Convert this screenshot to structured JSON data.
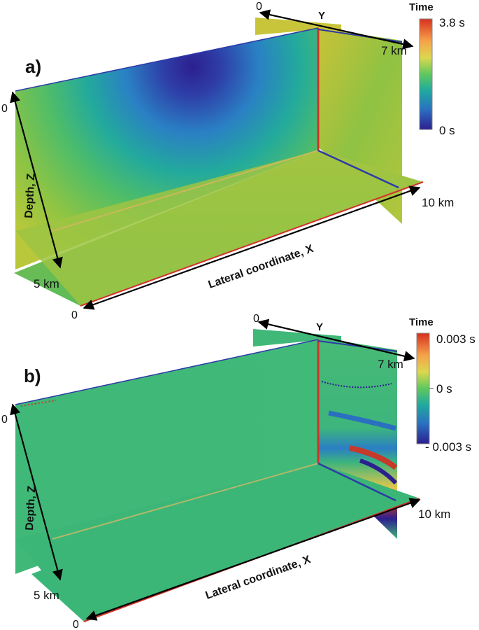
{
  "panels": [
    {
      "label": "a)",
      "colorbar": {
        "title": "Time",
        "max_label": "3.8 s",
        "mid_label": "",
        "min_label": "0 s",
        "colors": [
          "#d7301f",
          "#fdae61",
          "#e6e65a",
          "#5ec85e",
          "#1fa9a0",
          "#2a6fc0",
          "#2c1f8f"
        ]
      },
      "y_axis": {
        "name": "Y",
        "start": "0",
        "end": "7 km"
      },
      "x_axis": {
        "name": "Lateral coordinate, X",
        "start": "0",
        "end": "10 km"
      },
      "z_axis": {
        "name": "Depth, Z",
        "start": "0",
        "end": "5 km"
      }
    },
    {
      "label": "b)",
      "colorbar": {
        "title": "Time",
        "max_label": "0.003 s",
        "mid_label": "0 s",
        "min_label": "- 0.003 s",
        "colors": [
          "#d7301f",
          "#fdae61",
          "#e6e65a",
          "#5ec85e",
          "#1fa9a0",
          "#2a6fc0",
          "#2c1f8f"
        ]
      },
      "y_axis": {
        "name": "Y",
        "start": "0",
        "end": "7 km"
      },
      "x_axis": {
        "name": "Lateral coordinate, X",
        "start": "0",
        "end": "10 km"
      },
      "z_axis": {
        "name": "Depth, Z",
        "start": "0",
        "end": "5 km"
      }
    }
  ]
}
